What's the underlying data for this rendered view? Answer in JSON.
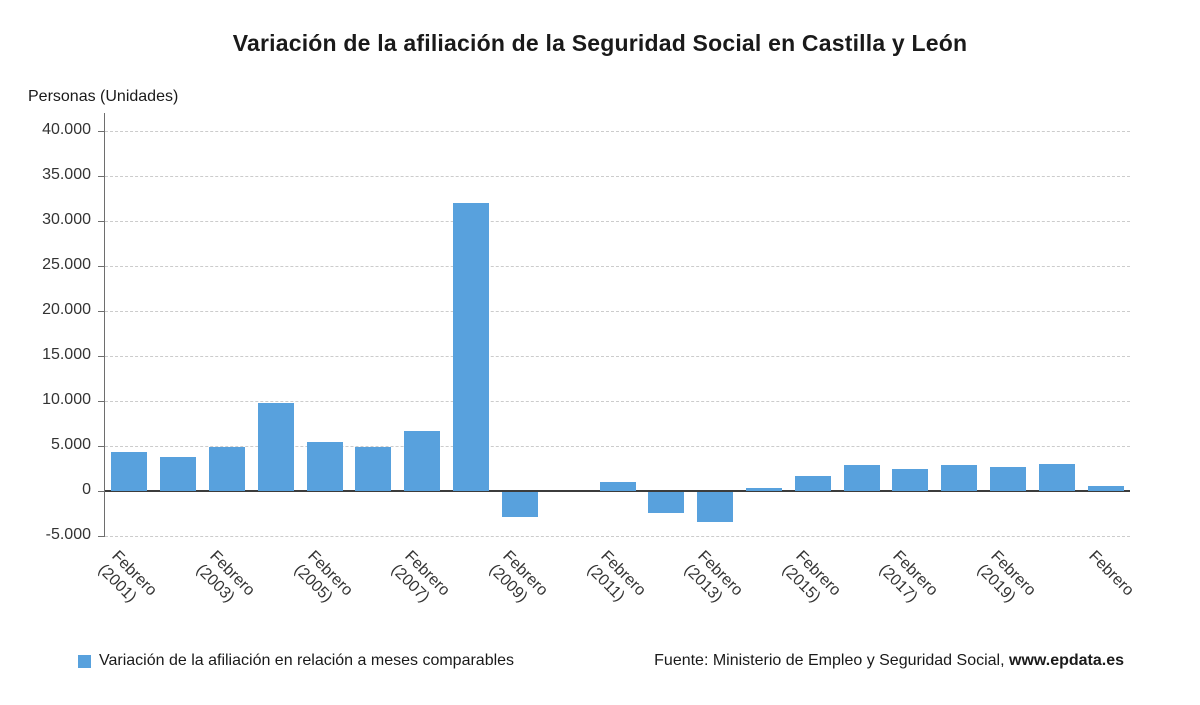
{
  "chart_data": {
    "type": "bar",
    "title": "Variación de la afiliación de la Seguridad Social en Castilla y León",
    "ylabel": "Personas (Unidades)",
    "xlabel": "",
    "bar_color": "#58A1DD",
    "grid": "dashed-horizontal",
    "ylim": [
      -5111,
      42000
    ],
    "values": [
      4300,
      3800,
      4900,
      9800,
      5400,
      4900,
      6700,
      32000,
      -2800,
      0,
      1000,
      -2300,
      -3300,
      300,
      1700,
      2900,
      2400,
      2900,
      2700,
      3000,
      600
    ],
    "y_ticks": [
      {
        "value": 40000,
        "label": "40.000"
      },
      {
        "value": 35000,
        "label": "35.000"
      },
      {
        "value": 30000,
        "label": "30.000"
      },
      {
        "value": 25000,
        "label": "25.000"
      },
      {
        "value": 20000,
        "label": "20.000"
      },
      {
        "value": 15000,
        "label": "15.000"
      },
      {
        "value": 10000,
        "label": "10.000"
      },
      {
        "value": 5000,
        "label": "5.000"
      },
      {
        "value": 0,
        "label": "0"
      },
      {
        "value": -5000,
        "label": "-5.000"
      }
    ],
    "x_ticks": [
      {
        "index": 0,
        "line1": "Febrero",
        "line2": "(2001)"
      },
      {
        "index": 2,
        "line1": "Febrero",
        "line2": "(2003)"
      },
      {
        "index": 4,
        "line1": "Febrero",
        "line2": "(2005)"
      },
      {
        "index": 6,
        "line1": "Febrero",
        "line2": "(2007)"
      },
      {
        "index": 8,
        "line1": "Febrero",
        "line2": "(2009)"
      },
      {
        "index": 10,
        "line1": "Febrero",
        "line2": "(2011)"
      },
      {
        "index": 12,
        "line1": "Febrero",
        "line2": "(2013)"
      },
      {
        "index": 14,
        "line1": "Febrero",
        "line2": "(2015)"
      },
      {
        "index": 16,
        "line1": "Febrero",
        "line2": "(2017)"
      },
      {
        "index": 18,
        "line1": "Febrero",
        "line2": "(2019)"
      },
      {
        "index": 20,
        "line1": "Febrero",
        "line2": ""
      }
    ]
  },
  "legend": {
    "swatch_color": "#58A1DD",
    "label": "Variación de la afiliación en relación a meses comparables"
  },
  "source": {
    "prefix": "Fuente: Ministerio de Empleo y Seguridad Social,",
    "site": "www.epdata.es"
  }
}
